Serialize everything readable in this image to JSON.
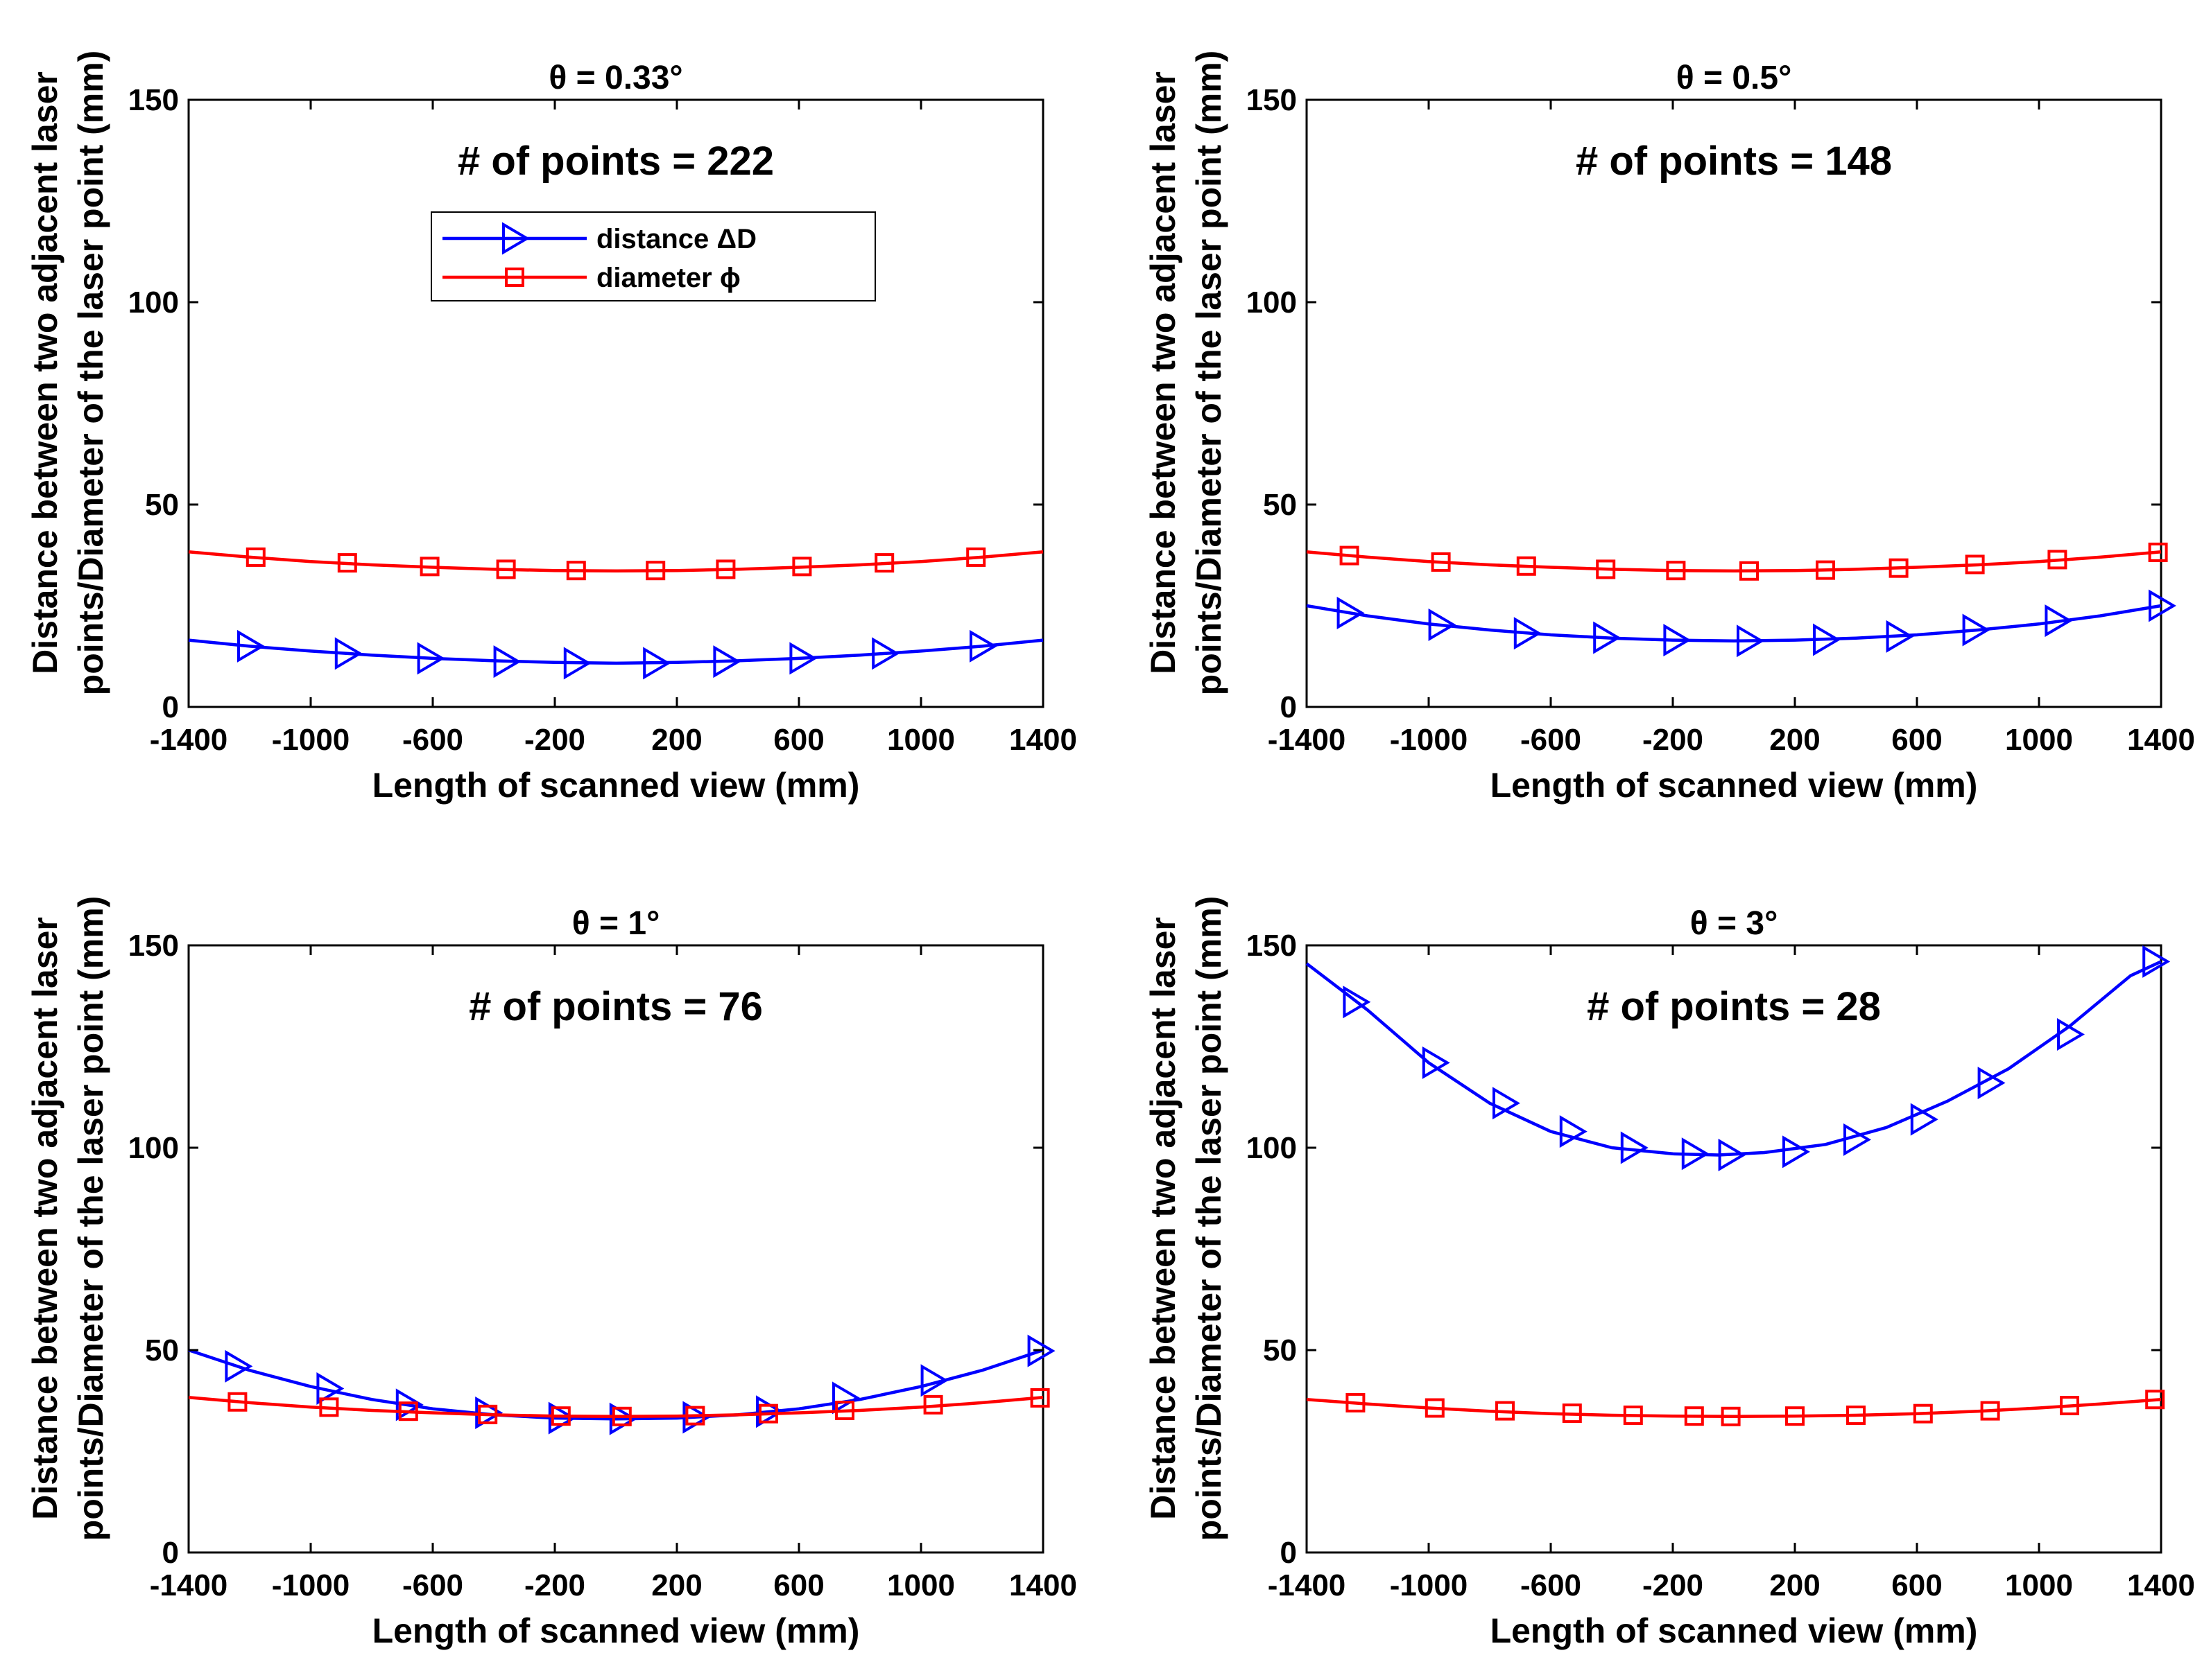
{
  "figure": {
    "colors": {
      "distance": "#0000FF",
      "diameter": "#FF0000",
      "axis": "#000000"
    },
    "legend": {
      "distance_label": "distance ΔD",
      "diameter_label": "diameter ϕ",
      "placement": "top-center of first panel"
    }
  },
  "chart_data": [
    {
      "type": "line",
      "title": "θ = 0.33°",
      "annotation": "# of points =  222",
      "xlabel": "Length of scanned view (mm)",
      "ylabel_line1": "Distance between two adjacent laser",
      "ylabel_line2": "points/Diameter of the laser point (mm)",
      "xlim": [
        -1400,
        1400
      ],
      "ylim": [
        0,
        150
      ],
      "xticks": [
        -1400,
        -1000,
        -600,
        -200,
        200,
        600,
        1000,
        1400
      ],
      "yticks": [
        0,
        50,
        100,
        150
      ],
      "show_legend": true,
      "series": [
        {
          "name": "distance ΔD",
          "marker": "triangle-right",
          "x": [
            -1400,
            -1200,
            -1000,
            -800,
            -600,
            -400,
            -200,
            0,
            200,
            400,
            600,
            800,
            1000,
            1200,
            1400
          ],
          "y": [
            16.5,
            15.0,
            13.8,
            12.8,
            12.0,
            11.4,
            11.0,
            10.8,
            11.0,
            11.4,
            12.0,
            12.8,
            13.8,
            15.0,
            16.5
          ],
          "marker_x": [
            -1200,
            -880,
            -610,
            -360,
            -130,
            130,
            360,
            610,
            880,
            1200
          ],
          "marker_y": [
            15.0,
            13.2,
            12.0,
            11.2,
            10.8,
            10.8,
            11.2,
            12.0,
            13.2,
            15.0
          ]
        },
        {
          "name": "diameter ϕ",
          "marker": "square",
          "x": [
            -1400,
            -1200,
            -1000,
            -800,
            -600,
            -400,
            -200,
            0,
            200,
            400,
            600,
            800,
            1000,
            1200,
            1400
          ],
          "y": [
            38.3,
            37.0,
            35.9,
            35.1,
            34.5,
            34.0,
            33.7,
            33.6,
            33.7,
            34.0,
            34.5,
            35.1,
            35.9,
            37.0,
            38.3
          ],
          "marker_x": [
            -1180,
            -880,
            -610,
            -360,
            -130,
            130,
            360,
            610,
            880,
            1180
          ],
          "marker_y": [
            37.0,
            35.6,
            34.7,
            34.0,
            33.7,
            33.7,
            34.0,
            34.7,
            35.6,
            37.0
          ]
        }
      ]
    },
    {
      "type": "line",
      "title": "θ = 0.5°",
      "annotation": "# of points =  148",
      "xlabel": "Length of scanned view (mm)",
      "ylabel_line1": "Distance between two adjacent laser",
      "ylabel_line2": "points/Diameter of the laser point (mm)",
      "xlim": [
        -1400,
        1400
      ],
      "ylim": [
        0,
        150
      ],
      "xticks": [
        -1400,
        -1000,
        -600,
        -200,
        200,
        600,
        1000,
        1400
      ],
      "yticks": [
        0,
        50,
        100,
        150
      ],
      "show_legend": false,
      "series": [
        {
          "name": "distance ΔD",
          "marker": "triangle-right",
          "x": [
            -1400,
            -1200,
            -1000,
            -800,
            -600,
            -400,
            -200,
            0,
            200,
            400,
            600,
            800,
            1000,
            1200,
            1400
          ],
          "y": [
            25.0,
            22.5,
            20.5,
            19.0,
            17.8,
            17.0,
            16.5,
            16.3,
            16.5,
            17.0,
            17.8,
            19.0,
            20.5,
            22.5,
            25.0
          ],
          "marker_x": [
            -1260,
            -960,
            -680,
            -420,
            -190,
            50,
            300,
            540,
            790,
            1060,
            1400
          ],
          "marker_y": [
            23.2,
            20.3,
            18.2,
            17.1,
            16.5,
            16.3,
            16.6,
            17.4,
            19.0,
            21.3,
            25.0
          ]
        },
        {
          "name": "diameter ϕ",
          "marker": "square",
          "x": [
            -1400,
            -1200,
            -1000,
            -800,
            -600,
            -400,
            -200,
            0,
            200,
            400,
            600,
            800,
            1000,
            1200,
            1400
          ],
          "y": [
            38.3,
            37.0,
            35.9,
            35.1,
            34.5,
            34.0,
            33.7,
            33.6,
            33.7,
            34.0,
            34.5,
            35.1,
            35.9,
            37.0,
            38.3
          ],
          "marker_x": [
            -1260,
            -960,
            -680,
            -420,
            -190,
            50,
            300,
            540,
            790,
            1060,
            1390
          ],
          "marker_y": [
            37.4,
            35.8,
            34.8,
            34.0,
            33.7,
            33.6,
            33.8,
            34.3,
            35.2,
            36.4,
            38.2
          ]
        }
      ]
    },
    {
      "type": "line",
      "title": "θ = 1°",
      "annotation": "# of points =  76",
      "xlabel": "Length of scanned view (mm)",
      "ylabel_line1": "Distance between two adjacent laser",
      "ylabel_line2": "points/Diameter of the laser point (mm)",
      "xlim": [
        -1400,
        1400
      ],
      "ylim": [
        0,
        150
      ],
      "xticks": [
        -1400,
        -1000,
        -600,
        -200,
        200,
        600,
        1000,
        1400
      ],
      "yticks": [
        0,
        50,
        100,
        150
      ],
      "show_legend": false,
      "series": [
        {
          "name": "distance ΔD",
          "marker": "triangle-right",
          "x": [
            -1400,
            -1200,
            -1000,
            -800,
            -600,
            -400,
            -200,
            0,
            200,
            400,
            600,
            800,
            1000,
            1200,
            1400
          ],
          "y": [
            50.0,
            45.0,
            41.0,
            37.8,
            35.5,
            34.0,
            33.2,
            33.0,
            33.2,
            34.0,
            35.5,
            37.8,
            41.0,
            45.0,
            50.0
          ],
          "marker_x": [
            -1240,
            -940,
            -680,
            -420,
            -180,
            20,
            260,
            500,
            750,
            1040,
            1390
          ],
          "marker_y": [
            46.0,
            40.5,
            36.5,
            34.5,
            33.2,
            33.0,
            33.4,
            34.8,
            38.2,
            42.5,
            49.8
          ]
        },
        {
          "name": "diameter ϕ",
          "marker": "square",
          "x": [
            -1400,
            -1200,
            -1000,
            -800,
            -600,
            -400,
            -200,
            0,
            200,
            400,
            600,
            800,
            1000,
            1200,
            1400
          ],
          "y": [
            38.3,
            37.0,
            35.9,
            35.1,
            34.5,
            34.0,
            33.7,
            33.6,
            33.7,
            34.0,
            34.5,
            35.1,
            35.9,
            37.0,
            38.3
          ],
          "marker_x": [
            -1240,
            -940,
            -680,
            -420,
            -180,
            20,
            260,
            500,
            750,
            1040,
            1390
          ],
          "marker_y": [
            37.2,
            35.9,
            34.9,
            34.1,
            33.7,
            33.6,
            33.8,
            34.3,
            35.1,
            36.5,
            38.2
          ]
        }
      ]
    },
    {
      "type": "line",
      "title": "θ = 3°",
      "annotation": "# of points =  28",
      "xlabel": "Length of scanned view (mm)",
      "ylabel_line1": "Distance between two adjacent laser",
      "ylabel_line2": "points/Diameter of the laser point (mm)",
      "xlim": [
        -1400,
        1400
      ],
      "ylim": [
        0,
        150
      ],
      "xticks": [
        -1400,
        -1000,
        -600,
        -200,
        200,
        600,
        1000,
        1400
      ],
      "yticks": [
        0,
        50,
        100,
        150
      ],
      "show_legend": false,
      "series": [
        {
          "name": "distance ΔD",
          "marker": "triangle-right",
          "x": [
            -1400,
            -1200,
            -1000,
            -800,
            -600,
            -400,
            -200,
            -50,
            100,
            300,
            500,
            700,
            900,
            1100,
            1300,
            1400
          ],
          "y": [
            145.5,
            134.0,
            121.0,
            111.0,
            104.0,
            100.0,
            98.5,
            98.2,
            98.8,
            100.8,
            105.0,
            111.5,
            119.5,
            130.0,
            142.5,
            146.0
          ],
          "marker_x": [
            -1240,
            -980,
            -750,
            -530,
            -330,
            -130,
            -10,
            200,
            400,
            620,
            840,
            1100,
            1380
          ],
          "marker_y": [
            136.0,
            121.0,
            111.0,
            104.0,
            100.0,
            98.5,
            98.2,
            99.0,
            102.0,
            107.0,
            116.0,
            128.0,
            146.0
          ]
        },
        {
          "name": "diameter ϕ",
          "marker": "square",
          "x": [
            -1400,
            -1200,
            -1000,
            -800,
            -600,
            -400,
            -200,
            0,
            200,
            400,
            600,
            800,
            1000,
            1200,
            1400
          ],
          "y": [
            37.8,
            36.7,
            35.7,
            34.9,
            34.3,
            33.9,
            33.7,
            33.6,
            33.7,
            33.9,
            34.3,
            34.9,
            35.7,
            36.7,
            37.8
          ],
          "marker_x": [
            -1240,
            -980,
            -750,
            -530,
            -330,
            -130,
            -10,
            200,
            400,
            620,
            840,
            1100,
            1380
          ],
          "marker_y": [
            37.0,
            35.7,
            35.0,
            34.4,
            33.9,
            33.7,
            33.6,
            33.7,
            33.9,
            34.3,
            35.0,
            36.3,
            37.8
          ]
        }
      ]
    }
  ]
}
